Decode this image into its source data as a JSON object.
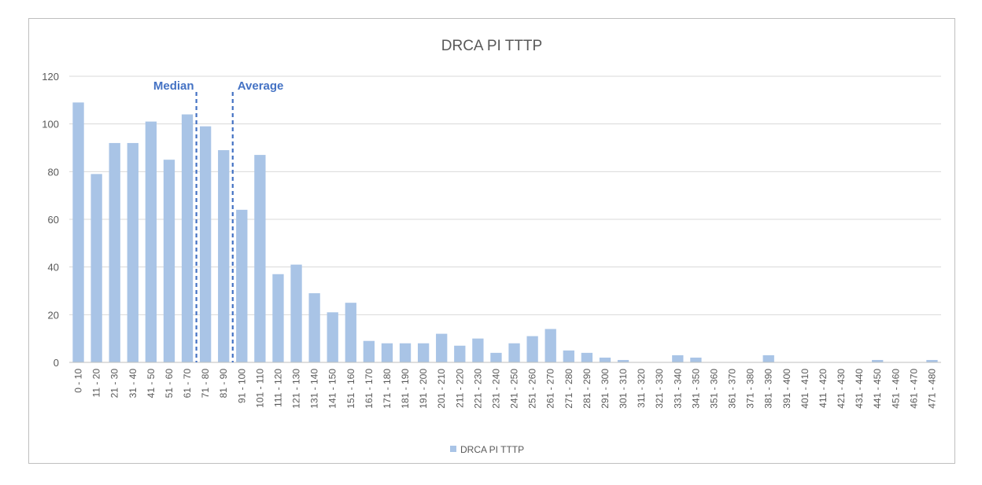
{
  "chart_data": {
    "type": "bar",
    "title": "DRCA PI TTTP",
    "xlabel": "",
    "ylabel": "",
    "ylim": [
      0,
      120
    ],
    "yticks": [
      0,
      20,
      40,
      60,
      80,
      100,
      120
    ],
    "grid": true,
    "legend": "bottom",
    "categories": [
      "0 - 10",
      "11 - 20",
      "21 - 30",
      "31 - 40",
      "41 - 50",
      "51 - 60",
      "61 - 70",
      "71 - 80",
      "81 - 90",
      "91 - 100",
      "101 - 110",
      "111 - 120",
      "121 - 130",
      "131 - 140",
      "141 - 150",
      "151 - 160",
      "161 - 170",
      "171 - 180",
      "181 - 190",
      "191 - 200",
      "201 - 210",
      "211 - 220",
      "221 - 230",
      "231 - 240",
      "241 - 250",
      "251 - 260",
      "261 - 270",
      "271 - 280",
      "281 - 290",
      "291 - 300",
      "301 - 310",
      "311 - 320",
      "321 - 330",
      "331 - 340",
      "341 - 350",
      "351 - 360",
      "361 - 370",
      "371 - 380",
      "381 - 390",
      "391 - 400",
      "401 - 410",
      "411 - 420",
      "421 - 430",
      "431 - 440",
      "441 - 450",
      "451 - 460",
      "461 - 470",
      "471 - 480"
    ],
    "series": [
      {
        "name": "DRCA PI TTTP",
        "color": "#a9c4e6",
        "values": [
          109,
          79,
          92,
          92,
          101,
          85,
          104,
          99,
          89,
          64,
          87,
          37,
          41,
          29,
          21,
          25,
          9,
          8,
          8,
          8,
          12,
          7,
          10,
          4,
          8,
          11,
          14,
          5,
          4,
          2,
          1,
          0,
          0,
          3,
          2,
          0,
          0,
          0,
          3,
          0,
          0,
          0,
          0,
          0,
          1,
          0,
          0,
          1
        ]
      }
    ],
    "annotations": [
      {
        "label": "Median",
        "x_category": "61 - 70",
        "color": "#4472c4",
        "style": "dashed"
      },
      {
        "label": "Average",
        "x_category": "81 - 90",
        "color": "#4472c4",
        "style": "dashed"
      }
    ],
    "colors": {
      "gridline": "#d9d9d9",
      "axis": "#bfbfbf",
      "text": "#595959",
      "annotation": "#4472c4"
    }
  }
}
